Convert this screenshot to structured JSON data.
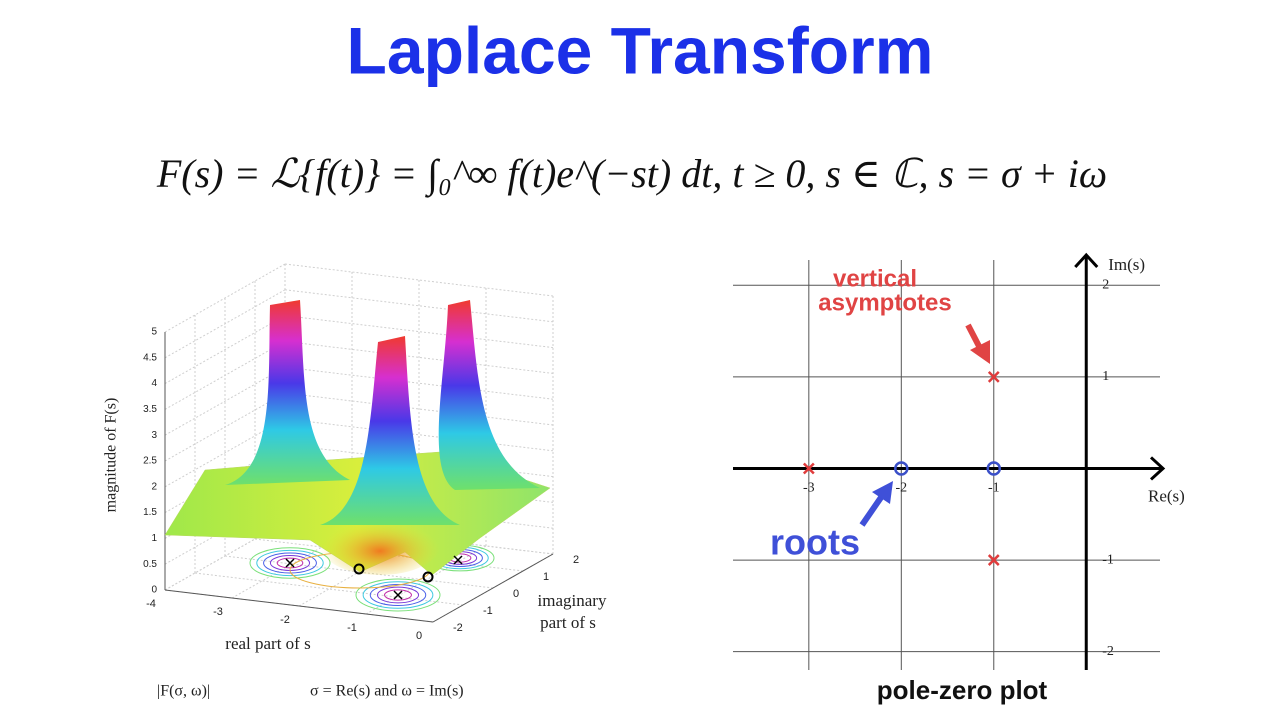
{
  "title": "Laplace Transform",
  "formula": "F(s) = ℒ{f(t)} = ∫₀^∞ f(t)e^(−st) dt,   t ≥ 0,  s ∈ ℂ,  s = σ + iω",
  "chart_data": [
    {
      "type": "surface",
      "zlabel": "magnitude of F(s)",
      "xlabel": "real part of s",
      "ylabel": [
        "imaginary",
        "part of s"
      ],
      "zticks": [
        0,
        0.5,
        1,
        1.5,
        2,
        2.5,
        3,
        3.5,
        4,
        4.5,
        5
      ],
      "xticks": [
        -4,
        -3,
        -2,
        -1,
        0
      ],
      "yticks": [
        -2,
        -1,
        0,
        1,
        2
      ],
      "annotations": [
        "|F(σ, ω)|",
        "σ = Re(s) and ω = Im(s)"
      ]
    },
    {
      "type": "scatter",
      "xlabel": "Re(s)",
      "ylabel": "Im(s)",
      "caption": "pole-zero plot",
      "annotations": [
        [
          "vertical",
          "asymptotes"
        ],
        "roots"
      ],
      "xlim": [
        -3.82,
        0.83
      ],
      "ylim": [
        -2.2,
        2.33
      ],
      "xticks": [
        -3,
        -2,
        -1
      ],
      "yticks": [
        -2,
        -1,
        1,
        2
      ],
      "grid": true,
      "series": [
        {
          "color": "#e03c3c",
          "marker": "x",
          "x": [
            -3,
            -1,
            -1
          ],
          "values": [
            0,
            1,
            -1
          ]
        },
        {
          "color": "#3a4fc8",
          "marker": "o",
          "x": [
            -2,
            -1
          ],
          "values": [
            0,
            0
          ]
        }
      ]
    }
  ]
}
